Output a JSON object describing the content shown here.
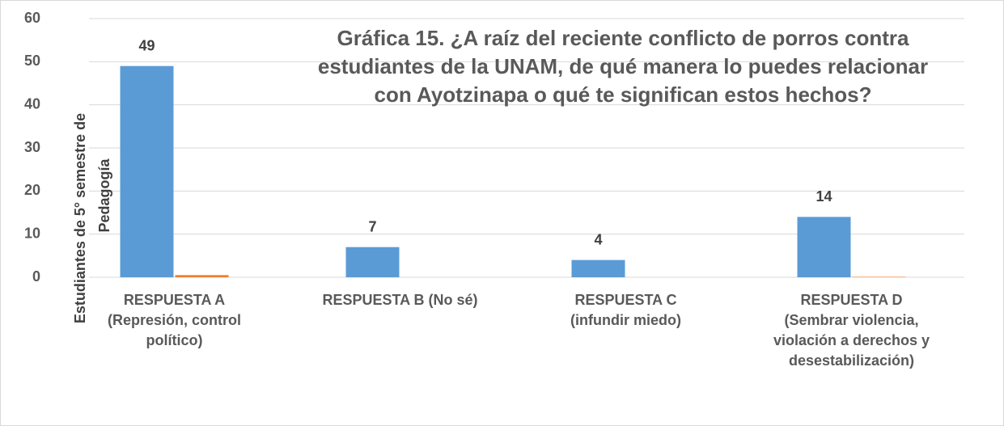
{
  "chart_data": {
    "type": "bar",
    "title": [
      "Gráfica 15. ¿A raíz del reciente conflicto de porros contra",
      "estudiantes de la UNAM, de qué manera lo puedes relacionar",
      "con Ayotzinapa o qué te significan estos hechos?"
    ],
    "y_label": [
      "Estudiantes de 5° semestre de",
      "Pedagogía"
    ],
    "categories": [
      [
        "RESPUESTA A",
        "(Represión, control",
        "político)"
      ],
      [
        "RESPUESTA B (No sé)"
      ],
      [
        "RESPUESTA C",
        "(infundir miedo)"
      ],
      [
        "RESPUESTA D",
        "(Sembrar violencia,",
        "violación a derechos y",
        "desestabilización)"
      ]
    ],
    "series": [
      {
        "color": "#5b9bd5",
        "values": [
          49,
          7,
          4,
          14
        ]
      },
      {
        "color": "#ed7d31",
        "values": [
          0.5,
          0,
          0,
          0.1
        ]
      }
    ],
    "ylim": [
      0,
      60
    ],
    "yticks": [
      0,
      10,
      20,
      30,
      40,
      50,
      60
    ],
    "grid": true
  }
}
